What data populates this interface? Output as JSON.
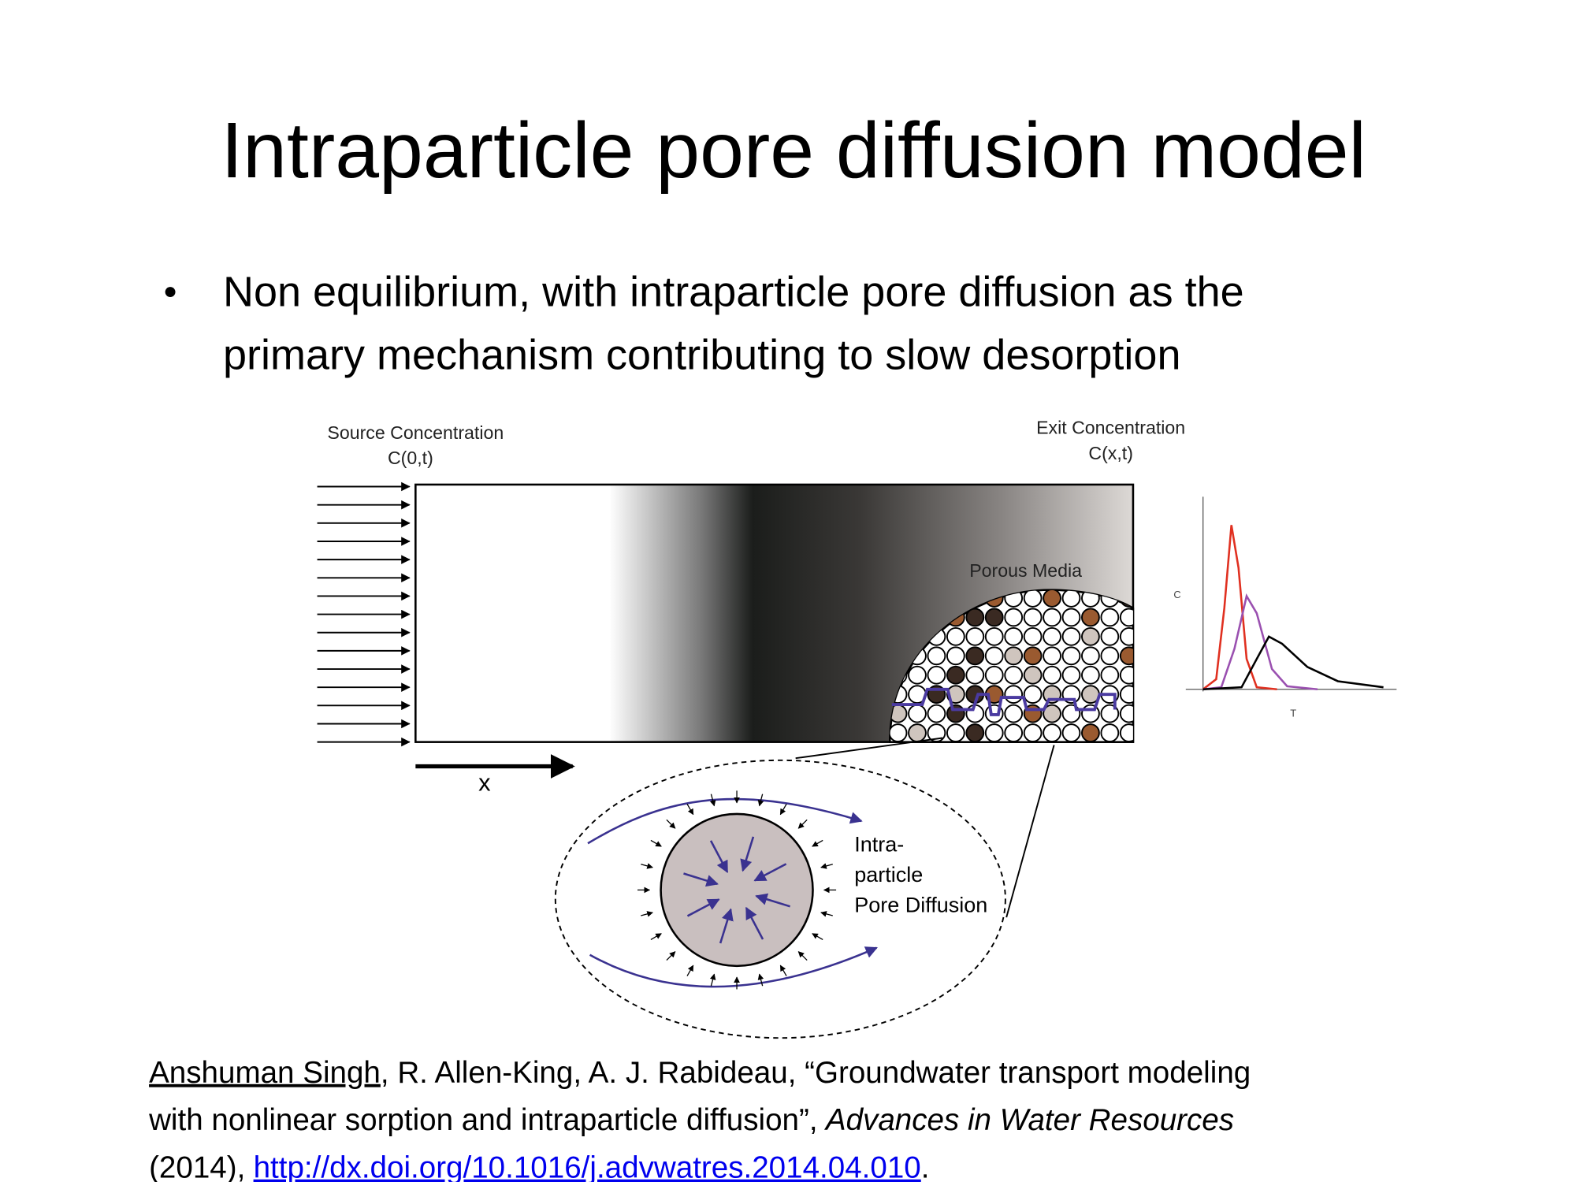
{
  "slide": {
    "title": "Intraparticle pore diffusion model",
    "bullet": {
      "lines": [
        "Non equilibrium, with intraparticle pore diffusion as the",
        "primary mechanism contributing to slow desorption"
      ]
    },
    "diagram": {
      "source_label": "Source Concentration",
      "source_symbol": "C(0,t)",
      "exit_label": "Exit Concentration",
      "exit_symbol": "C(x,t)",
      "porous_label": "Porous Media",
      "x_label": "x",
      "inset_lines": [
        "Intra-",
        "particle",
        "Pore Diffusion"
      ],
      "plot_y_label": "C",
      "plot_x_label": "T"
    },
    "citation": {
      "author": "Anshuman Singh",
      "line1_rest": ", R. Allen-King, A. J. Rabideau, “Groundwater transport modeling",
      "line2": "with nonlinear sorption and intraparticle diffusion”,",
      "journal": "Advances in Water Resources",
      "year": "(2014),",
      "link": "http://dx.doi.org/10.1016/j.advwatres.2014.04.010",
      "end": "."
    }
  }
}
